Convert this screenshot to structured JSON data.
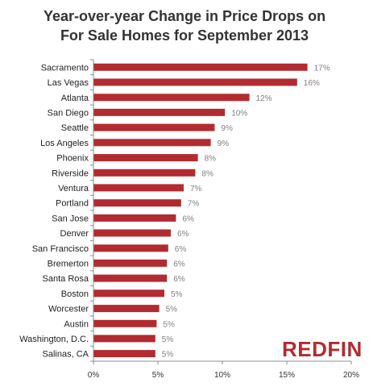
{
  "chart_data": {
    "type": "bar",
    "orientation": "horizontal",
    "title": [
      "Year-over-year Change in Price Drops on",
      "For Sale Homes for September 2013"
    ],
    "categories": [
      "Sacramento",
      "Las Vegas",
      "Atlanta",
      "San Diego",
      "Seattle",
      "Los Angeles",
      "Phoenix",
      "Riverside",
      "Ventura",
      "Portland",
      "San Jose",
      "Denver",
      "San Francisco",
      "Bremerton",
      "Santa Rosa",
      "Boston",
      "Worcester",
      "Austin",
      "Washington, D.C.",
      "Salinas, CA"
    ],
    "values": [
      16.6,
      15.8,
      12.1,
      10.2,
      9.4,
      9.1,
      8.1,
      7.9,
      7.0,
      6.8,
      6.4,
      6.0,
      5.8,
      5.7,
      5.7,
      5.5,
      5.1,
      4.9,
      4.8,
      4.8
    ],
    "value_labels": [
      "17%",
      "16%",
      "12%",
      "10%",
      "9%",
      "9%",
      "8%",
      "8%",
      "7%",
      "7%",
      "6%",
      "6%",
      "6%",
      "6%",
      "6%",
      "5%",
      "5%",
      "5%",
      "5%",
      "5%"
    ],
    "xlim": [
      0,
      20
    ],
    "xticks": [
      0,
      5,
      10,
      15,
      20
    ],
    "xtick_labels": [
      "0%",
      "5%",
      "10%",
      "15%",
      "20%"
    ],
    "xlabel": "",
    "ylabel": "",
    "grid": false,
    "legend": "none",
    "bar_color": "#b22b30"
  },
  "brand": {
    "logo_text": "REDFIN",
    "color": "#b22b30"
  }
}
